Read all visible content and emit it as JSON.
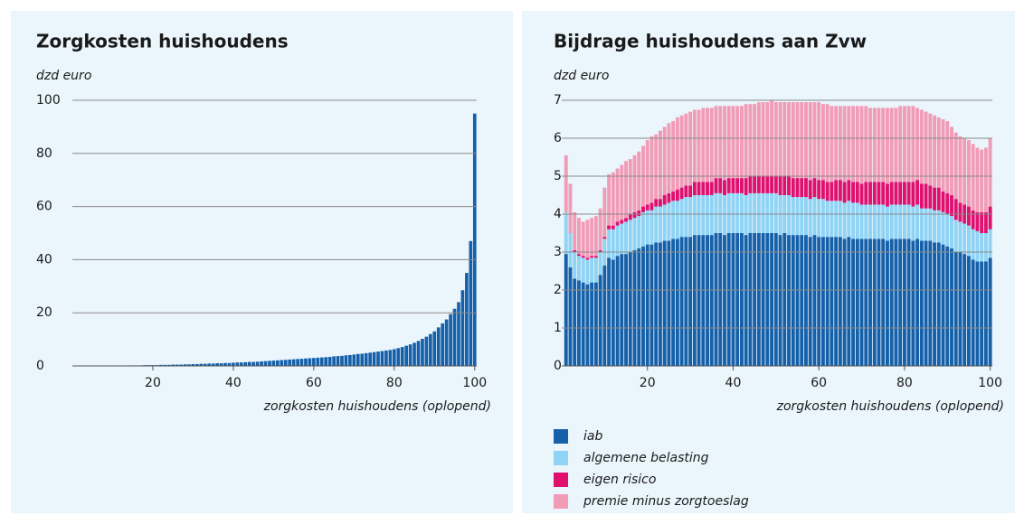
{
  "chart_data": [
    {
      "type": "bar",
      "title": "Zorgkosten huishoudens",
      "unit": "dzd euro",
      "x_label": "zorgkosten huishoudens (oplopend)",
      "x": [
        1,
        2,
        3,
        4,
        5,
        6,
        7,
        8,
        9,
        10,
        11,
        12,
        13,
        14,
        15,
        16,
        17,
        18,
        19,
        20,
        21,
        22,
        23,
        24,
        25,
        26,
        27,
        28,
        29,
        30,
        31,
        32,
        33,
        34,
        35,
        36,
        37,
        38,
        39,
        40,
        41,
        42,
        43,
        44,
        45,
        46,
        47,
        48,
        49,
        50,
        51,
        52,
        53,
        54,
        55,
        56,
        57,
        58,
        59,
        60,
        61,
        62,
        63,
        64,
        65,
        66,
        67,
        68,
        69,
        70,
        71,
        72,
        73,
        74,
        75,
        76,
        77,
        78,
        79,
        80,
        81,
        82,
        83,
        84,
        85,
        86,
        87,
        88,
        89,
        90,
        91,
        92,
        93,
        94,
        95,
        96,
        97,
        98,
        99,
        100
      ],
      "values": [
        0,
        0,
        0,
        0,
        0.1,
        0.1,
        0.1,
        0.1,
        0.1,
        0.1,
        0.1,
        0.1,
        0.1,
        0.2,
        0.2,
        0.2,
        0.2,
        0.3,
        0.3,
        0.3,
        0.3,
        0.4,
        0.4,
        0.4,
        0.5,
        0.5,
        0.5,
        0.6,
        0.6,
        0.7,
        0.7,
        0.8,
        0.8,
        0.9,
        0.9,
        1.0,
        1.0,
        1.1,
        1.1,
        1.2,
        1.3,
        1.3,
        1.4,
        1.5,
        1.5,
        1.6,
        1.7,
        1.8,
        1.9,
        2.0,
        2.1,
        2.2,
        2.3,
        2.4,
        2.5,
        2.6,
        2.7,
        2.8,
        2.9,
        3.0,
        3.1,
        3.2,
        3.3,
        3.4,
        3.6,
        3.7,
        3.8,
        4.0,
        4.1,
        4.3,
        4.5,
        4.6,
        4.8,
        5.0,
        5.2,
        5.4,
        5.6,
        5.8,
        6.0,
        6.3,
        6.7,
        7.1,
        7.6,
        8.1,
        8.7,
        9.4,
        10.2,
        11,
        12,
        13,
        14.5,
        16,
        17.5,
        19.5,
        21.5,
        24,
        28.5,
        35,
        47,
        95
      ],
      "color": "#1560a8",
      "xlim": [
        0,
        100.5
      ],
      "xticks": [
        20,
        40,
        60,
        80,
        100
      ],
      "ylim": [
        0,
        100
      ],
      "yticks": [
        0,
        20,
        40,
        60,
        80,
        100
      ],
      "grid": true
    },
    {
      "type": "stacked_bar",
      "title": "Bijdrage huishoudens aan Zvw",
      "unit": "dzd euro",
      "x_label": "zorgkosten huishoudens (oplopend)",
      "x": [
        1,
        2,
        3,
        4,
        5,
        6,
        7,
        8,
        9,
        10,
        11,
        12,
        13,
        14,
        15,
        16,
        17,
        18,
        19,
        20,
        21,
        22,
        23,
        24,
        25,
        26,
        27,
        28,
        29,
        30,
        31,
        32,
        33,
        34,
        35,
        36,
        37,
        38,
        39,
        40,
        41,
        42,
        43,
        44,
        45,
        46,
        47,
        48,
        49,
        50,
        51,
        52,
        53,
        54,
        55,
        56,
        57,
        58,
        59,
        60,
        61,
        62,
        63,
        64,
        65,
        66,
        67,
        68,
        69,
        70,
        71,
        72,
        73,
        74,
        75,
        76,
        77,
        78,
        79,
        80,
        81,
        82,
        83,
        84,
        85,
        86,
        87,
        88,
        89,
        90,
        91,
        92,
        93,
        94,
        95,
        96,
        97,
        98,
        99,
        100
      ],
      "series": [
        {
          "name": "iab",
          "color": "#1560a8",
          "values": [
            2.95,
            2.6,
            2.3,
            2.25,
            2.2,
            2.15,
            2.2,
            2.2,
            2.4,
            2.65,
            2.85,
            2.8,
            2.9,
            2.95,
            2.95,
            3.0,
            3.05,
            3.1,
            3.15,
            3.2,
            3.2,
            3.25,
            3.25,
            3.3,
            3.3,
            3.35,
            3.35,
            3.4,
            3.4,
            3.4,
            3.45,
            3.45,
            3.45,
            3.45,
            3.45,
            3.5,
            3.5,
            3.45,
            3.5,
            3.5,
            3.5,
            3.5,
            3.45,
            3.5,
            3.5,
            3.5,
            3.5,
            3.5,
            3.5,
            3.5,
            3.45,
            3.5,
            3.45,
            3.45,
            3.45,
            3.45,
            3.45,
            3.4,
            3.45,
            3.4,
            3.4,
            3.4,
            3.4,
            3.4,
            3.4,
            3.35,
            3.4,
            3.35,
            3.35,
            3.35,
            3.35,
            3.35,
            3.35,
            3.35,
            3.35,
            3.3,
            3.35,
            3.35,
            3.35,
            3.35,
            3.35,
            3.3,
            3.35,
            3.3,
            3.3,
            3.3,
            3.25,
            3.25,
            3.2,
            3.15,
            3.1,
            3.0,
            3.0,
            2.95,
            2.9,
            2.8,
            2.75,
            2.75,
            2.75,
            2.85
          ]
        },
        {
          "name": "algemene belasting",
          "color": "#8fd3f5",
          "values": [
            1.1,
            0.9,
            0.7,
            0.65,
            0.65,
            0.65,
            0.65,
            0.65,
            0.6,
            0.7,
            0.75,
            0.8,
            0.8,
            0.8,
            0.85,
            0.85,
            0.85,
            0.85,
            0.9,
            0.9,
            0.9,
            0.95,
            0.95,
            0.95,
            1.0,
            1.0,
            1.0,
            1.0,
            1.05,
            1.05,
            1.05,
            1.05,
            1.05,
            1.05,
            1.05,
            1.05,
            1.05,
            1.05,
            1.05,
            1.05,
            1.05,
            1.05,
            1.05,
            1.05,
            1.05,
            1.05,
            1.05,
            1.05,
            1.05,
            1.05,
            1.05,
            1.0,
            1.05,
            1.0,
            1.0,
            1.0,
            1.0,
            1.0,
            1.0,
            1.0,
            1.0,
            0.95,
            0.95,
            0.95,
            0.95,
            0.95,
            0.95,
            0.95,
            0.95,
            0.9,
            0.9,
            0.9,
            0.9,
            0.9,
            0.9,
            0.9,
            0.9,
            0.9,
            0.9,
            0.9,
            0.9,
            0.9,
            0.9,
            0.85,
            0.85,
            0.85,
            0.85,
            0.85,
            0.85,
            0.85,
            0.85,
            0.85,
            0.8,
            0.8,
            0.8,
            0.8,
            0.8,
            0.75,
            0.75,
            0.75
          ]
        },
        {
          "name": "eigen risico",
          "color": "#e0106f",
          "values": [
            0,
            0,
            0.05,
            0.05,
            0.05,
            0.05,
            0.05,
            0.05,
            0.05,
            0.05,
            0.1,
            0.1,
            0.1,
            0.1,
            0.1,
            0.15,
            0.15,
            0.15,
            0.15,
            0.15,
            0.2,
            0.2,
            0.2,
            0.25,
            0.25,
            0.25,
            0.3,
            0.3,
            0.3,
            0.3,
            0.35,
            0.35,
            0.35,
            0.35,
            0.35,
            0.4,
            0.4,
            0.4,
            0.4,
            0.4,
            0.4,
            0.4,
            0.45,
            0.45,
            0.45,
            0.45,
            0.45,
            0.45,
            0.45,
            0.45,
            0.5,
            0.5,
            0.5,
            0.5,
            0.5,
            0.5,
            0.5,
            0.5,
            0.5,
            0.5,
            0.5,
            0.5,
            0.5,
            0.55,
            0.55,
            0.55,
            0.55,
            0.55,
            0.55,
            0.55,
            0.6,
            0.6,
            0.6,
            0.6,
            0.6,
            0.6,
            0.6,
            0.6,
            0.6,
            0.6,
            0.6,
            0.65,
            0.65,
            0.65,
            0.65,
            0.6,
            0.6,
            0.6,
            0.55,
            0.55,
            0.55,
            0.55,
            0.5,
            0.5,
            0.5,
            0.5,
            0.5,
            0.55,
            0.55,
            0.6
          ]
        },
        {
          "name": "premie minus zorgtoeslag",
          "color": "#f29bb6",
          "values": [
            1.5,
            1.3,
            1.0,
            0.95,
            0.9,
            1.0,
            1.0,
            1.05,
            1.1,
            1.3,
            1.35,
            1.4,
            1.4,
            1.45,
            1.5,
            1.45,
            1.5,
            1.55,
            1.6,
            1.7,
            1.75,
            1.7,
            1.8,
            1.8,
            1.85,
            1.85,
            1.9,
            1.9,
            1.9,
            1.95,
            1.9,
            1.9,
            1.95,
            1.95,
            1.95,
            1.9,
            1.9,
            1.95,
            1.9,
            1.9,
            1.9,
            1.9,
            1.95,
            1.9,
            1.9,
            1.95,
            1.95,
            1.95,
            2.0,
            1.95,
            1.95,
            1.95,
            1.95,
            2.0,
            2.0,
            2.0,
            2.0,
            2.05,
            2.0,
            2.05,
            2.0,
            2.05,
            2.0,
            1.95,
            1.95,
            2.0,
            1.95,
            2.0,
            2.0,
            2.05,
            2.0,
            1.95,
            1.95,
            1.95,
            1.95,
            2.0,
            1.95,
            1.95,
            2.0,
            2.0,
            2.0,
            2.0,
            1.9,
            1.95,
            1.9,
            1.9,
            1.9,
            1.85,
            1.9,
            1.9,
            1.8,
            1.75,
            1.75,
            1.75,
            1.75,
            1.75,
            1.7,
            1.65,
            1.7,
            1.8
          ]
        }
      ],
      "xlim": [
        0,
        100.5
      ],
      "xticks": [
        20,
        40,
        60,
        80,
        100
      ],
      "ylim": [
        0,
        7
      ],
      "yticks": [
        0,
        1,
        2,
        3,
        4,
        5,
        6,
        7
      ],
      "grid": true
    }
  ]
}
